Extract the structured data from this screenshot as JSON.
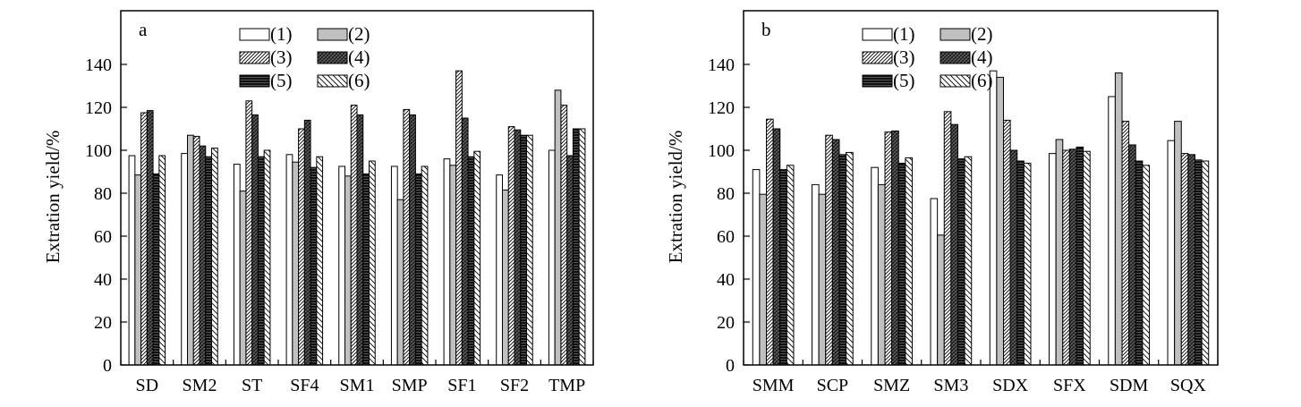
{
  "chart_data": [
    {
      "type": "bar",
      "panel_label": "a",
      "ylabel": "Extration yield/%",
      "ylim": [
        0,
        165
      ],
      "yticks": [
        0,
        20,
        40,
        60,
        80,
        100,
        120,
        140
      ],
      "grid": false,
      "legend_placement": "top-center",
      "categories": [
        "SD",
        "SM2",
        "ST",
        "SF4",
        "SM1",
        "SMP",
        "SF1",
        "SF2",
        "TMP"
      ],
      "series": [
        {
          "name": "(1)",
          "fill": "white",
          "values": [
            97.5,
            98.5,
            93.5,
            98,
            92.5,
            92.5,
            96,
            88.5,
            100
          ]
        },
        {
          "name": "(2)",
          "fill": "gray",
          "values": [
            88.5,
            107,
            81,
            94.5,
            88,
            77,
            93,
            81.5,
            128
          ]
        },
        {
          "name": "(3)",
          "fill": "fine-diagonal-hatch",
          "values": [
            117.5,
            106.5,
            123,
            110,
            121,
            119,
            137,
            111,
            121
          ]
        },
        {
          "name": "(4)",
          "fill": "dark-crosshatch",
          "values": [
            118.5,
            102,
            116.5,
            114,
            116.5,
            116.5,
            115,
            109.5,
            97.5
          ]
        },
        {
          "name": "(5)",
          "fill": "dark-horizontal",
          "values": [
            89,
            97,
            97,
            92,
            89,
            89,
            97,
            107,
            110
          ]
        },
        {
          "name": "(6)",
          "fill": "backslash-hatch",
          "values": [
            97.5,
            101,
            100,
            97,
            95,
            92.5,
            99.5,
            107,
            110
          ]
        }
      ]
    },
    {
      "type": "bar",
      "panel_label": "b",
      "ylabel": "Extration yield/%",
      "ylim": [
        0,
        165
      ],
      "yticks": [
        0,
        20,
        40,
        60,
        80,
        100,
        120,
        140
      ],
      "grid": false,
      "legend_placement": "top-center",
      "categories": [
        "SMM",
        "SCP",
        "SMZ",
        "SM3",
        "SDX",
        "SFX",
        "SDM",
        "SQX"
      ],
      "series": [
        {
          "name": "(1)",
          "fill": "white",
          "values": [
            91,
            84,
            92,
            77.5,
            137,
            98.5,
            125,
            104.5
          ]
        },
        {
          "name": "(2)",
          "fill": "gray",
          "values": [
            79.5,
            79.5,
            84,
            60.5,
            134,
            105,
            136,
            113.5
          ]
        },
        {
          "name": "(3)",
          "fill": "fine-diagonal-hatch",
          "values": [
            114.5,
            107,
            108.5,
            118,
            114,
            100,
            113.5,
            98.5
          ]
        },
        {
          "name": "(4)",
          "fill": "dark-crosshatch",
          "values": [
            110,
            105,
            109,
            112,
            100,
            100.5,
            102.5,
            98
          ]
        },
        {
          "name": "(5)",
          "fill": "dark-horizontal",
          "values": [
            91,
            98,
            94,
            96,
            95,
            101.5,
            95,
            95.5
          ]
        },
        {
          "name": "(6)",
          "fill": "backslash-hatch",
          "values": [
            93,
            99,
            96.5,
            97,
            94,
            99.5,
            93,
            95
          ]
        }
      ]
    }
  ]
}
